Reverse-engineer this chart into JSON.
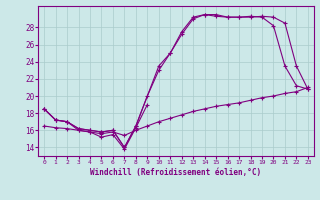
{
  "xlabel": "Windchill (Refroidissement éolien,°C)",
  "bg_color": "#cce8e8",
  "line_color": "#800080",
  "grid_color": "#aacccc",
  "xlim": [
    -0.5,
    23.5
  ],
  "ylim": [
    13.0,
    30.5
  ],
  "yticks": [
    14,
    16,
    18,
    20,
    22,
    24,
    26,
    28
  ],
  "xticks": [
    0,
    1,
    2,
    3,
    4,
    5,
    6,
    7,
    8,
    9,
    10,
    11,
    12,
    13,
    14,
    15,
    16,
    17,
    18,
    19,
    20,
    21,
    22,
    23
  ],
  "series": [
    {
      "x": [
        0,
        1,
        2,
        3,
        4,
        5,
        6,
        7,
        8,
        9
      ],
      "y": [
        18.5,
        17.2,
        17.0,
        16.0,
        15.8,
        15.2,
        15.5,
        13.8,
        16.3,
        19.0
      ]
    },
    {
      "x": [
        0,
        1,
        2,
        3,
        4,
        5,
        6,
        7,
        8,
        9,
        10,
        11,
        12,
        13,
        14,
        15,
        16,
        17,
        18,
        19,
        20,
        21,
        22,
        23
      ],
      "y": [
        16.5,
        16.3,
        16.2,
        16.0,
        15.8,
        15.6,
        15.8,
        15.4,
        16.0,
        16.5,
        17.0,
        17.4,
        17.8,
        18.2,
        18.5,
        18.8,
        19.0,
        19.2,
        19.5,
        19.8,
        20.0,
        20.3,
        20.5,
        21.0
      ]
    },
    {
      "x": [
        0,
        1,
        2,
        3,
        4,
        5,
        6,
        7,
        8,
        10,
        11,
        12,
        13,
        14,
        15,
        16,
        17,
        18,
        19,
        20,
        21,
        22,
        23
      ],
      "y": [
        18.5,
        17.2,
        17.0,
        16.2,
        16.0,
        15.8,
        16.0,
        14.0,
        16.5,
        23.5,
        25.0,
        27.5,
        29.2,
        29.5,
        29.5,
        29.2,
        29.2,
        29.2,
        29.3,
        29.2,
        28.5,
        23.5,
        20.8
      ]
    },
    {
      "x": [
        0,
        1,
        2,
        3,
        4,
        5,
        6,
        7,
        8,
        9,
        10,
        11,
        12,
        13,
        14,
        15,
        16,
        17,
        18,
        19,
        20,
        21,
        22,
        23
      ],
      "y": [
        18.5,
        17.2,
        17.0,
        16.2,
        16.0,
        15.8,
        16.0,
        14.0,
        16.5,
        20.0,
        23.0,
        25.0,
        27.2,
        29.0,
        29.5,
        29.3,
        29.2,
        29.2,
        29.3,
        29.2,
        28.2,
        23.5,
        21.2,
        20.8
      ]
    }
  ]
}
